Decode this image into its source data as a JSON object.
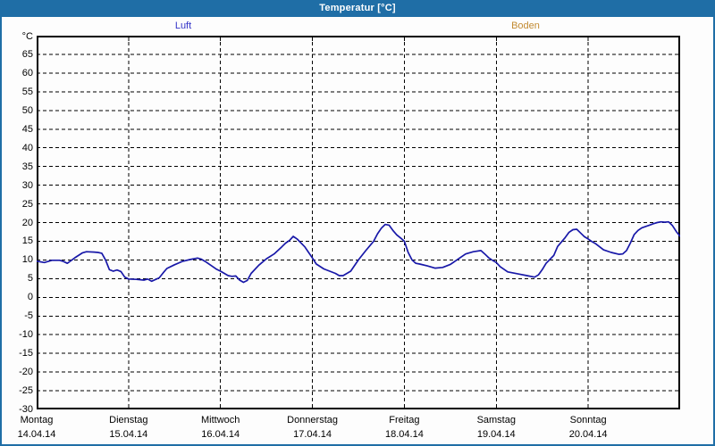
{
  "window": {
    "title": "Temperatur [°C]"
  },
  "legend": [
    {
      "label": "Luft",
      "color": "#3434c8"
    },
    {
      "label": "Boden",
      "color": "#c28a30"
    }
  ],
  "y_axis": {
    "unit": "°C",
    "ticks": [
      65,
      60,
      55,
      50,
      45,
      40,
      35,
      30,
      25,
      20,
      15,
      10,
      5,
      0,
      -5,
      -10,
      -15,
      -20,
      -25,
      -30
    ]
  },
  "x_axis": {
    "days": [
      {
        "name": "Montag",
        "date": "14.04.14"
      },
      {
        "name": "Dienstag",
        "date": "15.04.14"
      },
      {
        "name": "Mittwoch",
        "date": "16.04.14"
      },
      {
        "name": "Donnerstag",
        "date": "17.04.14"
      },
      {
        "name": "Freitag",
        "date": "18.04.14"
      },
      {
        "name": "Samstag",
        "date": "19.04.14"
      },
      {
        "name": "Sonntag",
        "date": "20.04.14"
      }
    ]
  },
  "chart_data": {
    "type": "line",
    "title": "Temperatur [°C]",
    "ylabel": "°C",
    "ylim": [
      -30,
      70
    ],
    "y_tick_step": 5,
    "xlim_hours": [
      0,
      168
    ],
    "grid": true,
    "grid_style": "dashed-black",
    "x_categories": [
      "Montag 14.04.14",
      "Dienstag 15.04.14",
      "Mittwoch 16.04.14",
      "Donnerstag 17.04.14",
      "Freitag 18.04.14",
      "Samstag 19.04.14",
      "Sonntag 20.04.14"
    ],
    "series": [
      {
        "name": "Luft",
        "color": "#1818a8",
        "x_hours": [
          0,
          2,
          4,
          6,
          7,
          8,
          10,
          12,
          13,
          15,
          16,
          17,
          18,
          19,
          20,
          21,
          22,
          23,
          24,
          26,
          28,
          29,
          30,
          32,
          33,
          34,
          36,
          38,
          40,
          42,
          43,
          44,
          46,
          47,
          48,
          49,
          50,
          51,
          52,
          53,
          54,
          55,
          56,
          58,
          60,
          62,
          64,
          65,
          66,
          67,
          68,
          70,
          71,
          72,
          73,
          75,
          78,
          79,
          80,
          82,
          84,
          86,
          88,
          89,
          90,
          91,
          92,
          93,
          94,
          95,
          96,
          97,
          98,
          99,
          100,
          102,
          104,
          106,
          108,
          110,
          112,
          114,
          116,
          117,
          118,
          119,
          120,
          121,
          123,
          126,
          128,
          130,
          131,
          132,
          133,
          135,
          136,
          138,
          139,
          140,
          141,
          142,
          143,
          144,
          145,
          146,
          148,
          150,
          152,
          153,
          154,
          155,
          156,
          157,
          158,
          160,
          161,
          162,
          163,
          164,
          165,
          166,
          167,
          168
        ],
        "values": [
          9.7,
          9.3,
          9.9,
          9.9,
          9.6,
          9.1,
          10.6,
          11.9,
          12.2,
          12.1,
          12.0,
          11.8,
          10.0,
          7.4,
          7.0,
          7.3,
          6.9,
          5.4,
          4.9,
          4.8,
          4.6,
          4.9,
          4.3,
          5.2,
          6.5,
          7.7,
          8.7,
          9.6,
          10.1,
          10.5,
          10.2,
          9.6,
          8.2,
          7.5,
          7.0,
          6.4,
          5.8,
          5.6,
          5.7,
          4.6,
          4.0,
          4.5,
          6.4,
          8.6,
          10.3,
          11.6,
          13.5,
          14.5,
          15.2,
          16.3,
          15.6,
          13.5,
          12.0,
          10.5,
          8.9,
          7.6,
          6.4,
          5.8,
          5.8,
          7.0,
          10.0,
          12.6,
          15.0,
          17.0,
          18.5,
          19.5,
          19.3,
          17.9,
          16.7,
          15.9,
          15.0,
          12.0,
          10.0,
          9.1,
          8.9,
          8.4,
          7.8,
          8.0,
          8.8,
          10.2,
          11.6,
          12.2,
          12.5,
          11.6,
          10.6,
          9.9,
          9.3,
          8.2,
          6.8,
          6.2,
          5.8,
          5.4,
          6.0,
          7.4,
          9.1,
          11.2,
          13.6,
          16.0,
          17.4,
          18.1,
          18.2,
          17.2,
          16.2,
          15.6,
          14.9,
          14.3,
          12.7,
          12.0,
          11.5,
          11.6,
          12.5,
          14.5,
          16.8,
          17.9,
          18.6,
          19.3,
          19.7,
          20.0,
          20.2,
          20.1,
          20.2,
          19.2,
          17.6,
          16.3
        ]
      },
      {
        "name": "Boden",
        "color": "#c28a30",
        "x_hours": [],
        "values": [],
        "note": "legend entry shown, no curve plotted"
      }
    ],
    "legend_position": "top"
  },
  "colors": {
    "titlebar": "#1f6ea6",
    "window_border": "#1f6ea6",
    "background": "#fdfdfd",
    "plot_border": "#000000",
    "gridline": "#000000"
  }
}
